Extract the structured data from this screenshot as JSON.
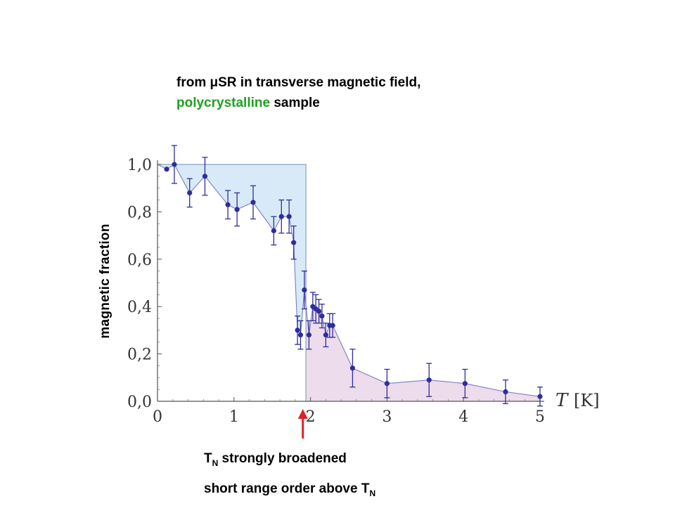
{
  "annotation": {
    "line1": "from μSR in transverse magnetic field,",
    "line2_green": "polycrystalline",
    "line2_rest": " sample",
    "green_color": "#1fa01f",
    "tn_note_pre": "T",
    "tn_note_sub": "N",
    "tn_note_post": " strongly broadened",
    "sro_note_pre": "short range order above T",
    "sro_note_sub": "N",
    "arrow_color": "#e02020"
  },
  "chart_data": {
    "type": "scatter",
    "xlabel_italic": "T",
    "xlabel_unit": "[K]",
    "ylabel": "magnetic fraction",
    "xlim": [
      0,
      5
    ],
    "ylim": [
      0,
      1
    ],
    "x_ticks": [
      "0",
      "1",
      "2",
      "3",
      "4",
      "5"
    ],
    "y_ticks": [
      "0,0",
      "0,2",
      "0,4",
      "0,6",
      "0,8",
      "1,0"
    ],
    "grid": false,
    "marker_color": "#2e2e9a",
    "line_color": "#7b7bc0",
    "step_fill_color": "#d8eaf8",
    "data_fill_color": "#ecdcec",
    "arrow_x": 1.9,
    "series": [
      {
        "points": [
          {
            "x": 0.0,
            "y": 1.0,
            "err": 0.0
          },
          {
            "x": 0.12,
            "y": 0.98,
            "err": 0.0
          },
          {
            "x": 0.22,
            "y": 1.0,
            "err": 0.08
          },
          {
            "x": 0.42,
            "y": 0.88,
            "err": 0.06
          },
          {
            "x": 0.62,
            "y": 0.95,
            "err": 0.08
          },
          {
            "x": 0.92,
            "y": 0.83,
            "err": 0.06
          },
          {
            "x": 1.04,
            "y": 0.81,
            "err": 0.07
          },
          {
            "x": 1.25,
            "y": 0.84,
            "err": 0.07
          },
          {
            "x": 1.52,
            "y": 0.72,
            "err": 0.06
          },
          {
            "x": 1.62,
            "y": 0.78,
            "err": 0.07
          },
          {
            "x": 1.72,
            "y": 0.78,
            "err": 0.07
          },
          {
            "x": 1.78,
            "y": 0.67,
            "err": 0.07
          },
          {
            "x": 1.83,
            "y": 0.3,
            "err": 0.06
          },
          {
            "x": 1.87,
            "y": 0.28,
            "err": 0.06
          },
          {
            "x": 1.92,
            "y": 0.47,
            "err": 0.08
          },
          {
            "x": 1.98,
            "y": 0.28,
            "err": 0.06
          },
          {
            "x": 2.03,
            "y": 0.4,
            "err": 0.06
          },
          {
            "x": 2.07,
            "y": 0.39,
            "err": 0.06
          },
          {
            "x": 2.11,
            "y": 0.38,
            "err": 0.05
          },
          {
            "x": 2.15,
            "y": 0.36,
            "err": 0.05
          },
          {
            "x": 2.2,
            "y": 0.28,
            "err": 0.05
          },
          {
            "x": 2.25,
            "y": 0.32,
            "err": 0.05
          },
          {
            "x": 2.29,
            "y": 0.32,
            "err": 0.05
          },
          {
            "x": 2.55,
            "y": 0.14,
            "err": 0.08
          },
          {
            "x": 3.0,
            "y": 0.075,
            "err": 0.06
          },
          {
            "x": 3.55,
            "y": 0.09,
            "err": 0.07
          },
          {
            "x": 4.02,
            "y": 0.075,
            "err": 0.06
          },
          {
            "x": 4.55,
            "y": 0.04,
            "err": 0.05
          },
          {
            "x": 5.0,
            "y": 0.02,
            "err": 0.04
          }
        ]
      }
    ],
    "step": {
      "value": 1.0,
      "until": 1.94
    }
  }
}
